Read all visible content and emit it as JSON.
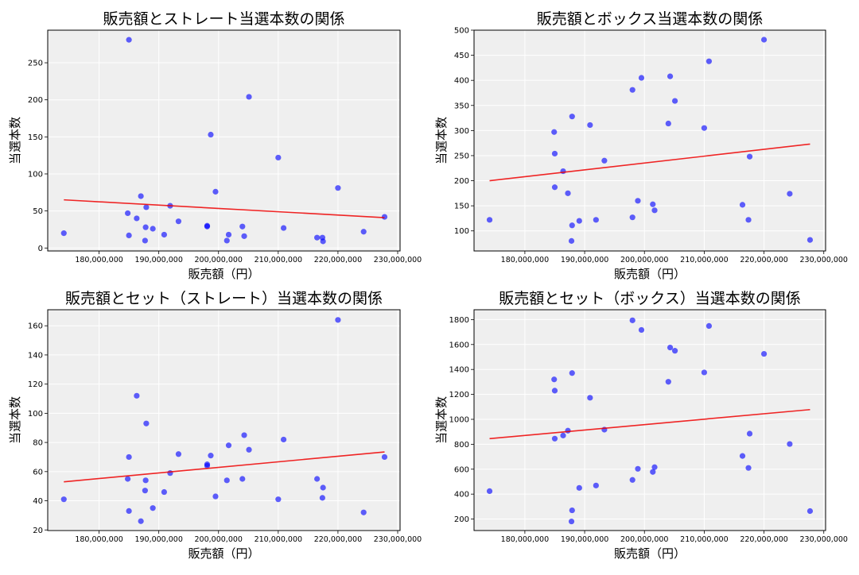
{
  "chart_data": [
    {
      "type": "scatter",
      "title": "販売額とストレート当選本数の関係",
      "xlabel": "販売額（円）",
      "ylabel": "当選本数",
      "xlim": [
        171400000,
        230400000
      ],
      "ylim": [
        -4,
        294
      ],
      "xticks": [
        180000000,
        190000000,
        200000000,
        210000000,
        220000000,
        230000000
      ],
      "yticks": [
        0,
        50,
        100,
        150,
        200,
        250
      ],
      "grid": true,
      "point_color": "#0000ff",
      "trend_color": "#ee0000",
      "trendline": [
        [
          174100000,
          65
        ],
        [
          227800000,
          41
        ]
      ],
      "points": [
        [
          174100000,
          20
        ],
        [
          185000000,
          281
        ],
        [
          184800000,
          47
        ],
        [
          185000000,
          17
        ],
        [
          186300000,
          40
        ],
        [
          187000000,
          70
        ],
        [
          187800000,
          28
        ],
        [
          187900000,
          55
        ],
        [
          187700000,
          10
        ],
        [
          189000000,
          26
        ],
        [
          190900000,
          18
        ],
        [
          191900000,
          57
        ],
        [
          193300000,
          36
        ],
        [
          198100000,
          29
        ],
        [
          198100000,
          30
        ],
        [
          198700000,
          153
        ],
        [
          199500000,
          76
        ],
        [
          201400000,
          10
        ],
        [
          201700000,
          18
        ],
        [
          204000000,
          29
        ],
        [
          204300000,
          16
        ],
        [
          205100000,
          204
        ],
        [
          210000000,
          122
        ],
        [
          210900000,
          27
        ],
        [
          216500000,
          14
        ],
        [
          217400000,
          14
        ],
        [
          217500000,
          9
        ],
        [
          220000000,
          81
        ],
        [
          224300000,
          22
        ],
        [
          227800000,
          42
        ]
      ]
    },
    {
      "type": "scatter",
      "title": "販売額とボックス当選本数の関係",
      "xlabel": "販売額（円）",
      "ylabel": "当選本数",
      "xlim": [
        171500000,
        230300000
      ],
      "ylim": [
        60,
        500
      ],
      "xticks": [
        180000000,
        190000000,
        200000000,
        210000000,
        220000000,
        230000000
      ],
      "yticks": [
        100,
        150,
        200,
        250,
        300,
        350,
        400,
        450,
        500
      ],
      "grid": true,
      "point_color": "#0000ff",
      "trend_color": "#ee0000",
      "trendline": [
        [
          174100000,
          200
        ],
        [
          227700000,
          273
        ]
      ],
      "points": [
        [
          174100000,
          122
        ],
        [
          184900000,
          297
        ],
        [
          185000000,
          254
        ],
        [
          185000000,
          187
        ],
        [
          186400000,
          219
        ],
        [
          187200000,
          175
        ],
        [
          187900000,
          328
        ],
        [
          187900000,
          111
        ],
        [
          187800000,
          80
        ],
        [
          189100000,
          120
        ],
        [
          190900000,
          311
        ],
        [
          191900000,
          122
        ],
        [
          193300000,
          240
        ],
        [
          198000000,
          381
        ],
        [
          198000000,
          127
        ],
        [
          198900000,
          160
        ],
        [
          199500000,
          405
        ],
        [
          201400000,
          153
        ],
        [
          201700000,
          141
        ],
        [
          204000000,
          314
        ],
        [
          204300000,
          408
        ],
        [
          205100000,
          359
        ],
        [
          210000000,
          305
        ],
        [
          210800000,
          438
        ],
        [
          216400000,
          152
        ],
        [
          217400000,
          122
        ],
        [
          217600000,
          248
        ],
        [
          220000000,
          481
        ],
        [
          224300000,
          174
        ],
        [
          227700000,
          82
        ]
      ]
    },
    {
      "type": "scatter",
      "title": "販売額とセット（ストレート）当選本数の関係",
      "xlabel": "販売額（円）",
      "ylabel": "当選本数",
      "xlim": [
        171400000,
        230400000
      ],
      "ylim": [
        19.6,
        171
      ],
      "xticks": [
        180000000,
        190000000,
        200000000,
        210000000,
        220000000,
        230000000
      ],
      "yticks": [
        20,
        40,
        60,
        80,
        100,
        120,
        140,
        160
      ],
      "grid": true,
      "point_color": "#0000ff",
      "trend_color": "#ee0000",
      "trendline": [
        [
          174100000,
          53
        ],
        [
          227800000,
          73.5
        ]
      ],
      "points": [
        [
          174100000,
          41
        ],
        [
          184800000,
          55
        ],
        [
          185000000,
          70
        ],
        [
          185000000,
          33
        ],
        [
          186300000,
          112
        ],
        [
          187000000,
          26
        ],
        [
          187700000,
          47
        ],
        [
          187800000,
          54
        ],
        [
          187900000,
          93
        ],
        [
          189000000,
          35
        ],
        [
          190900000,
          46
        ],
        [
          191900000,
          59
        ],
        [
          193300000,
          72
        ],
        [
          198100000,
          65
        ],
        [
          198100000,
          64
        ],
        [
          198700000,
          71
        ],
        [
          199500000,
          43
        ],
        [
          201400000,
          54
        ],
        [
          201700000,
          78
        ],
        [
          204000000,
          55
        ],
        [
          204300000,
          85
        ],
        [
          205100000,
          75
        ],
        [
          210000000,
          41
        ],
        [
          210900000,
          82
        ],
        [
          216500000,
          55
        ],
        [
          217400000,
          42
        ],
        [
          217500000,
          49
        ],
        [
          220000000,
          164
        ],
        [
          224300000,
          32
        ],
        [
          227800000,
          70
        ]
      ]
    },
    {
      "type": "scatter",
      "title": "販売額とセット（ボックス）当選本数の関係",
      "xlabel": "販売額（円）",
      "ylabel": "当選本数",
      "xlim": [
        171500000,
        230300000
      ],
      "ylim": [
        108,
        1879
      ],
      "xticks": [
        180000000,
        190000000,
        200000000,
        210000000,
        220000000,
        230000000
      ],
      "yticks": [
        200,
        400,
        600,
        800,
        1000,
        1200,
        1400,
        1600,
        1800
      ],
      "grid": true,
      "point_color": "#0000ff",
      "trend_color": "#ee0000",
      "trendline": [
        [
          174100000,
          845
        ],
        [
          227700000,
          1078
        ]
      ],
      "points": [
        [
          174100000,
          424
        ],
        [
          184900000,
          1320
        ],
        [
          185000000,
          1230
        ],
        [
          185000000,
          845
        ],
        [
          186400000,
          870
        ],
        [
          187200000,
          909
        ],
        [
          187900000,
          1371
        ],
        [
          187900000,
          270
        ],
        [
          187800000,
          181
        ],
        [
          189100000,
          450
        ],
        [
          190900000,
          1173
        ],
        [
          191900000,
          469
        ],
        [
          193300000,
          917
        ],
        [
          198000000,
          1794
        ],
        [
          198000000,
          514
        ],
        [
          198900000,
          603
        ],
        [
          199500000,
          1717
        ],
        [
          201400000,
          578
        ],
        [
          201700000,
          616
        ],
        [
          204000000,
          1301
        ],
        [
          204300000,
          1576
        ],
        [
          205100000,
          1550
        ],
        [
          210000000,
          1376
        ],
        [
          210800000,
          1749
        ],
        [
          216400000,
          706
        ],
        [
          217400000,
          610
        ],
        [
          217600000,
          885
        ],
        [
          220000000,
          1525
        ],
        [
          224300000,
          802
        ],
        [
          227700000,
          264
        ]
      ]
    }
  ]
}
